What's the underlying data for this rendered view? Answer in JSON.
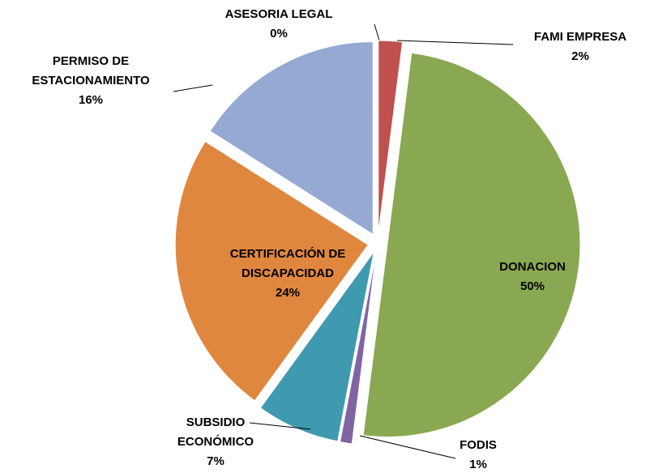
{
  "chart_data": {
    "type": "pie",
    "categories": [
      "ASESORIA LEGAL",
      "FAMI EMPRESA",
      "DONACION",
      "FODIS",
      "SUBSIDIO ECONÓMICO",
      "CERTIFICACIÓN DE DISCAPACIDAD",
      "PERMISO DE ESTACIONAMIENTO"
    ],
    "values": [
      0,
      2,
      50,
      1,
      7,
      24,
      16
    ],
    "value_labels": [
      "0%",
      "2%",
      "50%",
      "1%",
      "7%",
      "24%",
      "16%"
    ],
    "colors": [
      "#4f81bd",
      "#c0504d",
      "#8aa851",
      "#8064a2",
      "#3f9ab0",
      "#e0873f",
      "#95a9d3"
    ]
  }
}
